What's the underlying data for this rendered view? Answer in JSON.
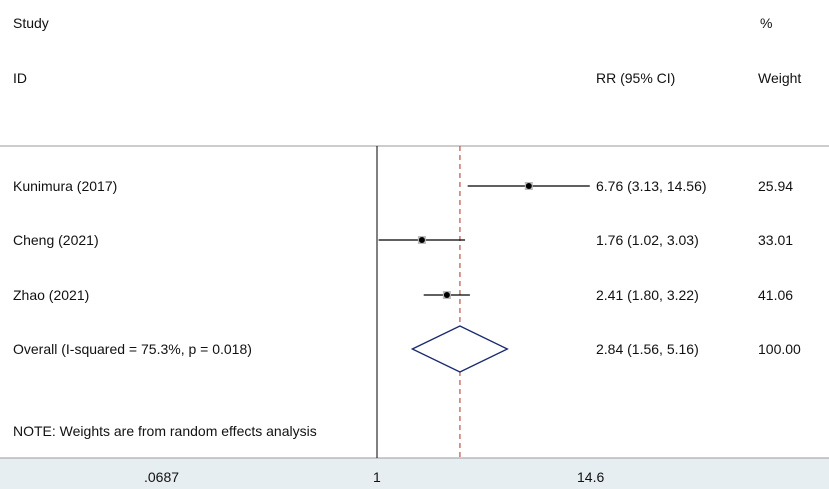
{
  "header": {
    "study_label": "Study",
    "id_label": "ID",
    "ci_label": "RR (95% CI)",
    "pct_label": "%",
    "weight_label": "Weight"
  },
  "note": "NOTE: Weights are from random effects analysis",
  "chart_data": {
    "type": "forest",
    "scale": "log",
    "xlim": [
      0.0687,
      14.6
    ],
    "xticks": [
      ".0687",
      "1",
      "14.6"
    ],
    "xtick_values": [
      0.0687,
      1,
      14.6
    ],
    "null_line": 1,
    "studies": [
      {
        "label": "Kunimura (2017)",
        "rr": 6.76,
        "lo": 3.13,
        "hi": 14.56,
        "ci_text": "6.76 (3.13, 14.56)",
        "weight": "25.94"
      },
      {
        "label": "Cheng (2021)",
        "rr": 1.76,
        "lo": 1.02,
        "hi": 3.03,
        "ci_text": "1.76 (1.02, 3.03)",
        "weight": "33.01"
      },
      {
        "label": "Zhao  (2021)",
        "rr": 2.41,
        "lo": 1.8,
        "hi": 3.22,
        "ci_text": "2.41 (1.80, 3.22)",
        "weight": "41.06"
      }
    ],
    "overall": {
      "label": "Overall  (I-squared = 75.3%, p = 0.018)",
      "rr": 2.84,
      "lo": 1.56,
      "hi": 5.16,
      "ci_text": "2.84 (1.56, 5.16)",
      "weight": "100.00"
    },
    "colors": {
      "diamond": "#1a2a6c",
      "reference": "#c0504d",
      "axis_band": "#e6eef2"
    }
  }
}
